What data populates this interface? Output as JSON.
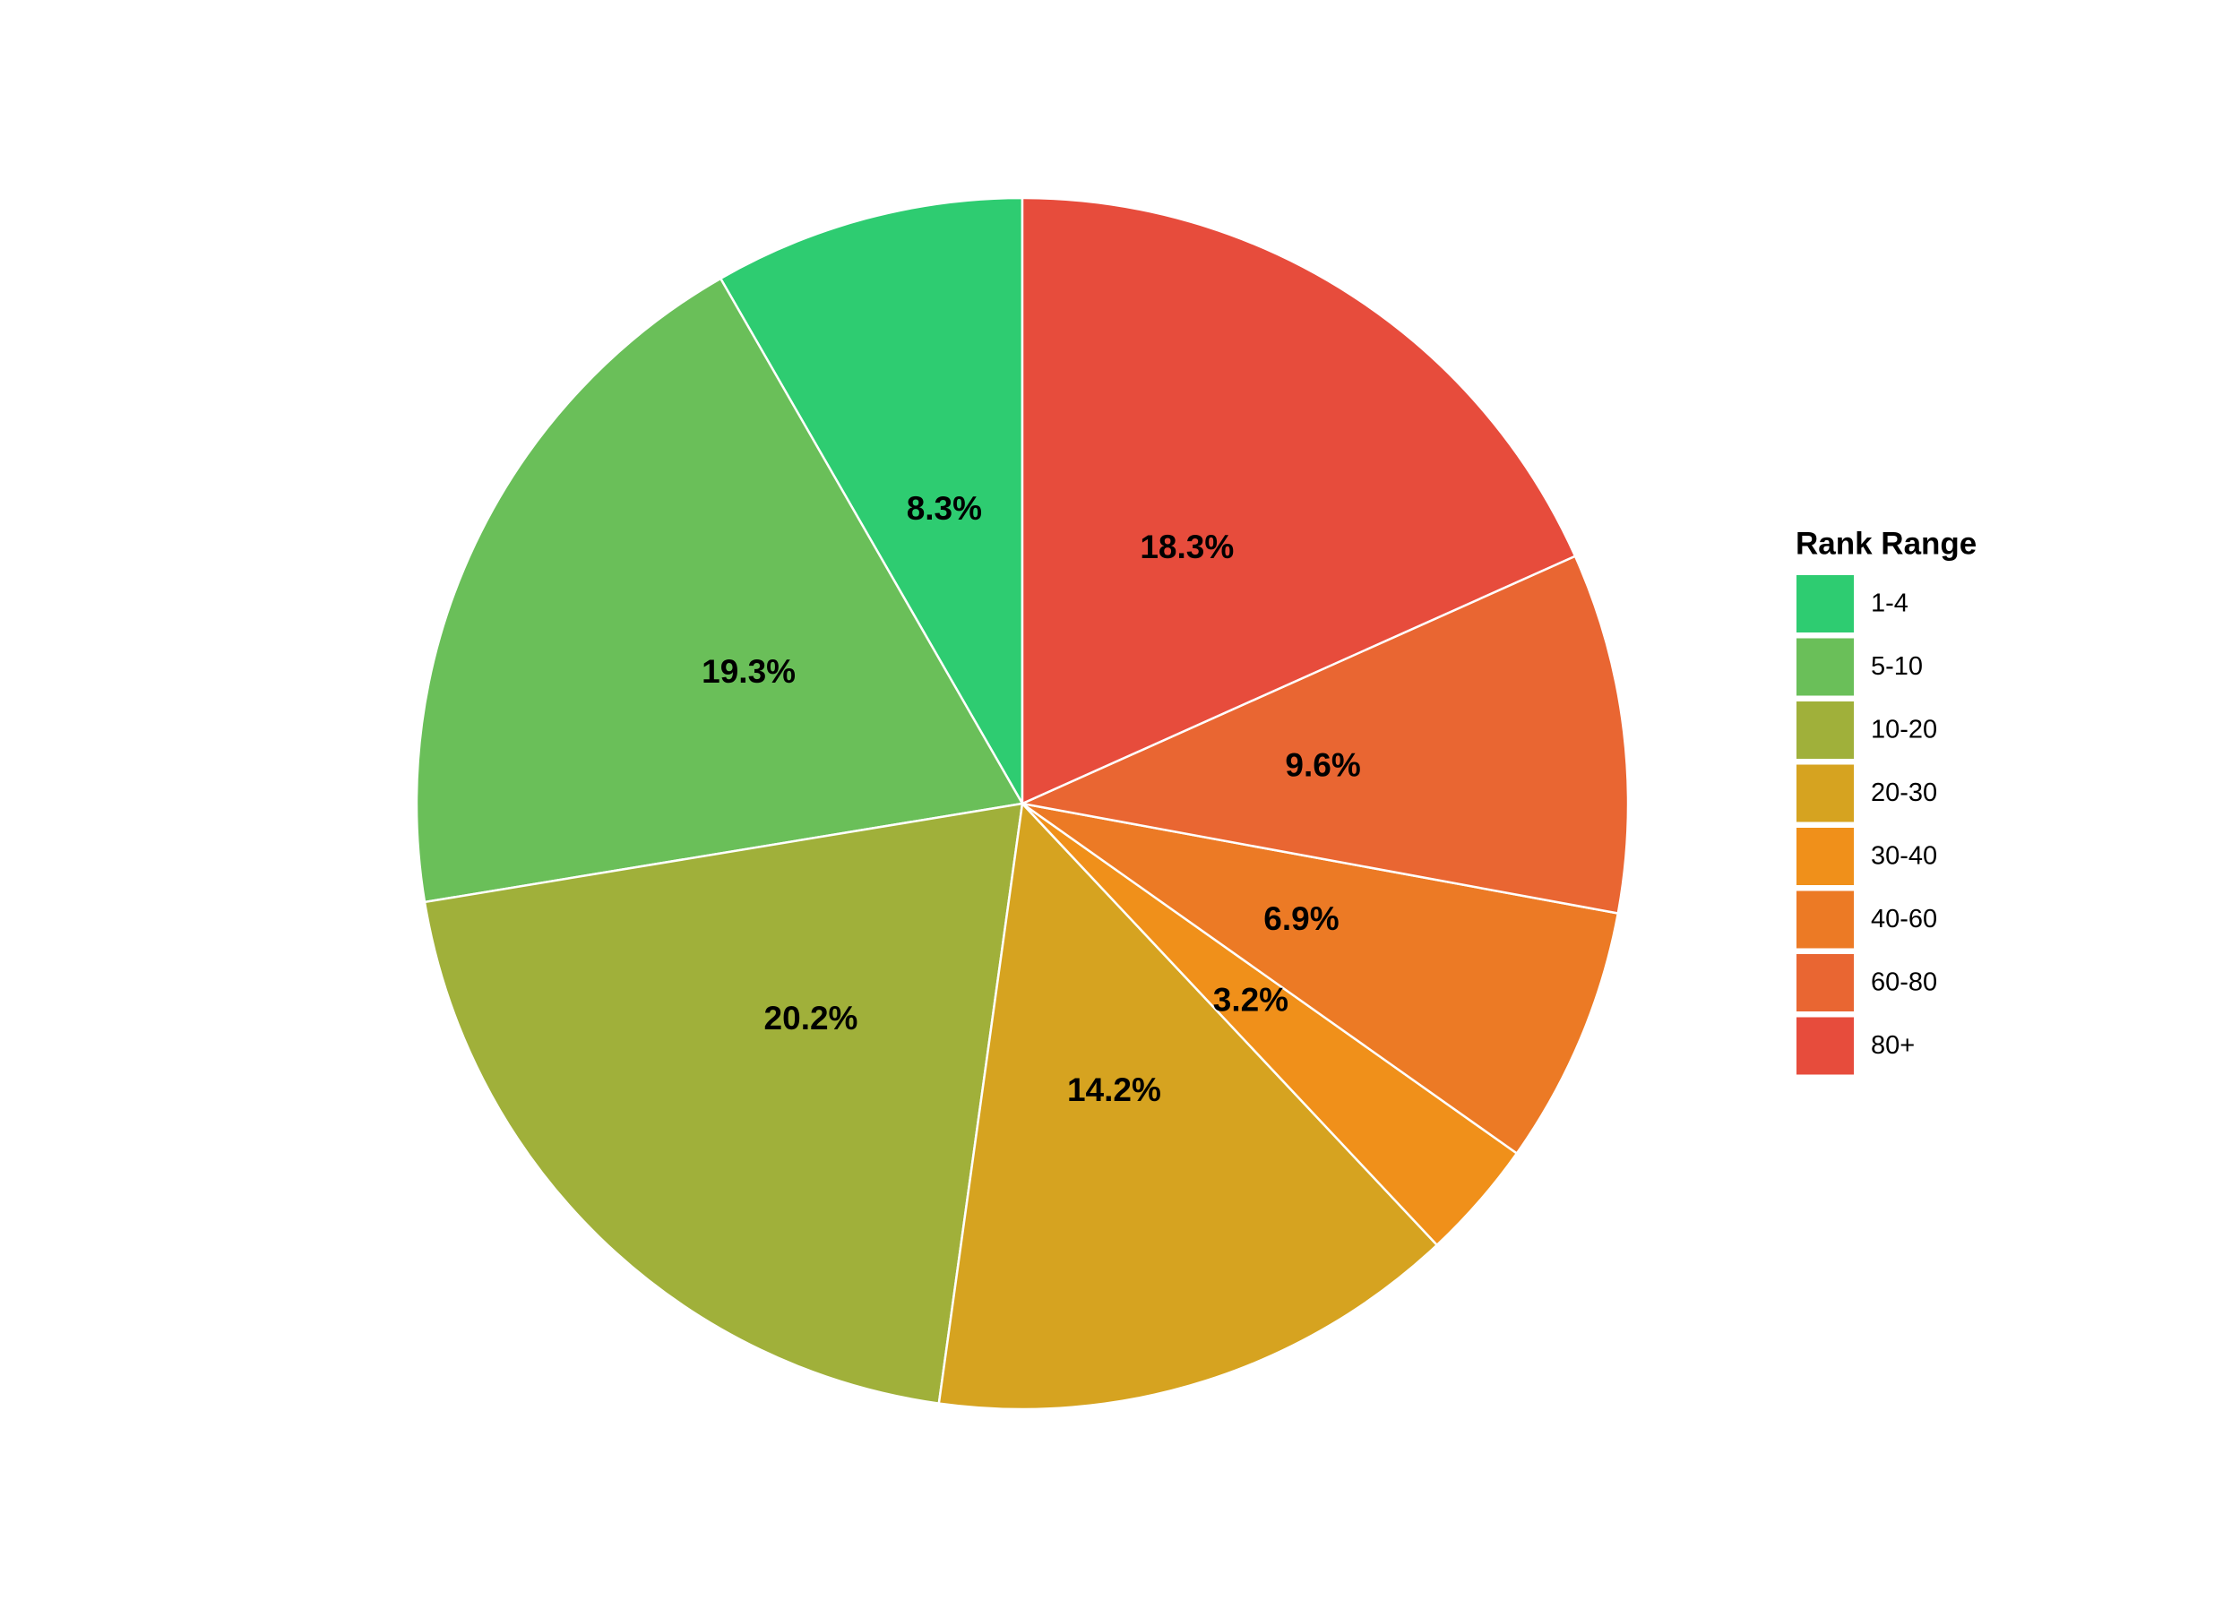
{
  "chart_data": {
    "type": "pie",
    "legend_title": "Rank Range",
    "categories": [
      "1-4",
      "5-10",
      "10-20",
      "20-30",
      "30-40",
      "40-60",
      "60-80",
      "80+"
    ],
    "values": [
      8.3,
      19.3,
      20.2,
      14.2,
      3.2,
      6.9,
      9.6,
      18.3
    ],
    "value_labels": [
      "8.3%",
      "19.3%",
      "20.2%",
      "14.2%",
      "3.2%",
      "6.9%",
      "9.6%",
      "18.3%"
    ],
    "colors": [
      "#2ecc71",
      "#6abf59",
      "#a0b03a",
      "#d6a320",
      "#f0901a",
      "#ec7a25",
      "#e96632",
      "#e74c3c"
    ],
    "direction": "counterclockwise",
    "legend": "right"
  }
}
